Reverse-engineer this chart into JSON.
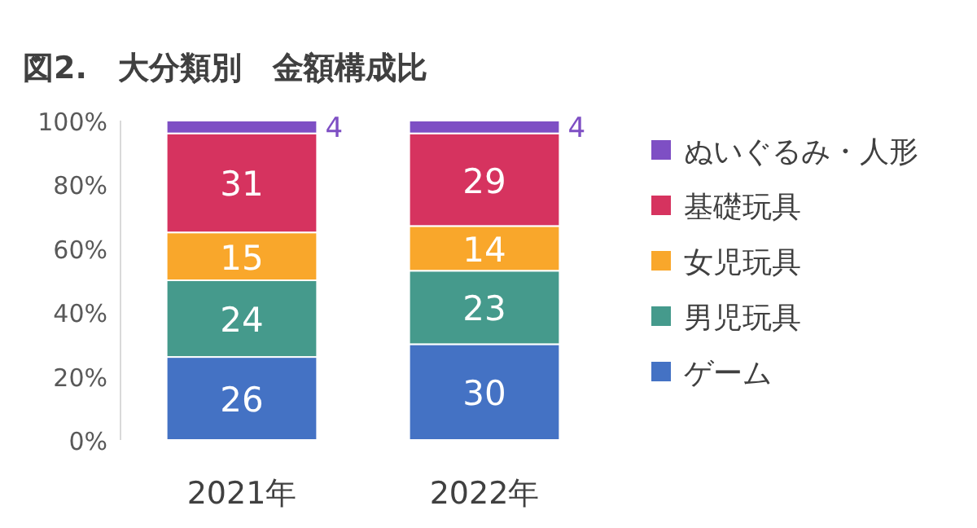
{
  "chart_data": {
    "type": "bar",
    "title": "図2.　大分類別　金額構成比",
    "stacked": true,
    "data_labels": true,
    "legend": "right",
    "categories": [
      "2021年",
      "2022年"
    ],
    "ylim": [
      0,
      100
    ],
    "yticks": [
      {
        "value": 0,
        "label": "0%"
      },
      {
        "value": 20,
        "label": "20%"
      },
      {
        "value": 40,
        "label": "40%"
      },
      {
        "value": 60,
        "label": "60%"
      },
      {
        "value": 80,
        "label": "80%"
      },
      {
        "value": 100,
        "label": "100%"
      }
    ],
    "series": [
      {
        "name": "ゲーム",
        "color": "#4472c4",
        "values": [
          26,
          30
        ]
      },
      {
        "name": "男児玩具",
        "color": "#459a8c",
        "values": [
          24,
          23
        ]
      },
      {
        "name": "女児玩具",
        "color": "#f9a72b",
        "values": [
          15,
          14
        ]
      },
      {
        "name": "基礎玩具",
        "color": "#d6335f",
        "values": [
          31,
          29
        ]
      },
      {
        "name": "ぬいぐるみ・人形",
        "color": "#7e4fc4",
        "values": [
          4,
          4
        ]
      }
    ]
  }
}
